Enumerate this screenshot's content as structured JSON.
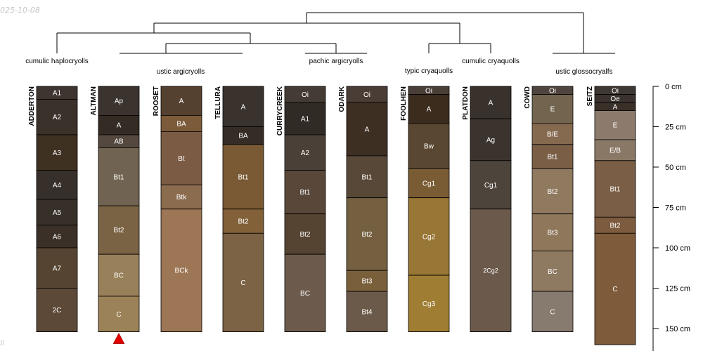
{
  "date_stamp": "025-10-08",
  "footer_mark": "ll",
  "taxa": [
    "cumulic haplocryolls",
    "ustic argicryolls",
    "pachic argicryolls",
    "typic cryaquolls",
    "cumulic cryaquolls",
    "ustic glossocryalfs"
  ],
  "depth_axis": {
    "unit": "cm",
    "ticks": [
      "0 cm",
      "25 cm",
      "50 cm",
      "75 cm",
      "100 cm",
      "125 cm",
      "150 cm"
    ]
  },
  "profiles": [
    {
      "name": "ADDERTON",
      "horizons": [
        {
          "label": "A1",
          "top": 0,
          "bottom": 8,
          "color": "#3e3530"
        },
        {
          "label": "A2",
          "top": 8,
          "bottom": 30,
          "color": "#3b312b"
        },
        {
          "label": "A3",
          "top": 30,
          "bottom": 52,
          "color": "#3f3122"
        },
        {
          "label": "A4",
          "top": 52,
          "bottom": 70,
          "color": "#372f29"
        },
        {
          "label": "A5",
          "top": 70,
          "bottom": 86,
          "color": "#373029"
        },
        {
          "label": "A6",
          "top": 86,
          "bottom": 100,
          "color": "#3a3028"
        },
        {
          "label": "A7",
          "top": 100,
          "bottom": 125,
          "color": "#544431"
        },
        {
          "label": "2C",
          "top": 125,
          "bottom": 152,
          "color": "#5c4938"
        }
      ]
    },
    {
      "name": "ALTMAN",
      "marker": true,
      "horizons": [
        {
          "label": "Ap",
          "top": 0,
          "bottom": 18,
          "color": "#3b332e"
        },
        {
          "label": "A",
          "top": 18,
          "bottom": 30,
          "color": "#332b24"
        },
        {
          "label": "AB",
          "top": 30,
          "bottom": 38,
          "color": "#54483f"
        },
        {
          "label": "Bt1",
          "top": 38,
          "bottom": 74,
          "color": "#716351"
        },
        {
          "label": "Bt2",
          "top": 74,
          "bottom": 104,
          "color": "#7a6244"
        },
        {
          "label": "BC",
          "top": 104,
          "bottom": 130,
          "color": "#98805a"
        },
        {
          "label": "C",
          "top": 130,
          "bottom": 152,
          "color": "#9c8258"
        }
      ]
    },
    {
      "name": "ROOSET",
      "horizons": [
        {
          "label": "A",
          "top": 0,
          "bottom": 18,
          "color": "#55412f"
        },
        {
          "label": "BA",
          "top": 18,
          "bottom": 28,
          "color": "#7b5b3a"
        },
        {
          "label": "Bt",
          "top": 28,
          "bottom": 61,
          "color": "#7b5b43"
        },
        {
          "label": "Btk",
          "top": 61,
          "bottom": 76,
          "color": "#8b6c4f"
        },
        {
          "label": "BCk",
          "top": 76,
          "bottom": 152,
          "color": "#9c7655"
        }
      ]
    },
    {
      "name": "TELLURA",
      "horizons": [
        {
          "label": "A",
          "top": 0,
          "bottom": 25,
          "color": "#3a332d"
        },
        {
          "label": "BA",
          "top": 25,
          "bottom": 36,
          "color": "#352c26"
        },
        {
          "label": "Bt1",
          "top": 36,
          "bottom": 76,
          "color": "#7a5a35"
        },
        {
          "label": "Bt2",
          "top": 76,
          "bottom": 91,
          "color": "#826038"
        },
        {
          "label": "C",
          "top": 91,
          "bottom": 152,
          "color": "#7c6346"
        }
      ]
    },
    {
      "name": "CURRYCREEK",
      "horizons": [
        {
          "label": "Oi",
          "top": 0,
          "bottom": 10,
          "color": "#443b34"
        },
        {
          "label": "A1",
          "top": 10,
          "bottom": 30,
          "color": "#312b26"
        },
        {
          "label": "A2",
          "top": 30,
          "bottom": 52,
          "color": "#4b4037"
        },
        {
          "label": "Bt1",
          "top": 52,
          "bottom": 79,
          "color": "#59483a"
        },
        {
          "label": "Bt2",
          "top": 79,
          "bottom": 104,
          "color": "#564432"
        },
        {
          "label": "BC",
          "top": 104,
          "bottom": 152,
          "color": "#6c5b4c"
        }
      ]
    },
    {
      "name": "ODARK",
      "horizons": [
        {
          "label": "Oi",
          "top": 0,
          "bottom": 10,
          "color": "#4a3d36"
        },
        {
          "label": "A",
          "top": 10,
          "bottom": 43,
          "color": "#3d2f22"
        },
        {
          "label": "Bt1",
          "top": 43,
          "bottom": 69,
          "color": "#584837"
        },
        {
          "label": "Bt2",
          "top": 69,
          "bottom": 114,
          "color": "#745f40"
        },
        {
          "label": "Bt3",
          "top": 114,
          "bottom": 127,
          "color": "#79603b"
        },
        {
          "label": "Bt4",
          "top": 127,
          "bottom": 152,
          "color": "#6b5a49"
        }
      ]
    },
    {
      "name": "FOOLHEN",
      "horizons": [
        {
          "label": "Oi",
          "top": 0,
          "bottom": 5,
          "color": "#4a3f38"
        },
        {
          "label": "A",
          "top": 5,
          "bottom": 23,
          "color": "#3c2c1e"
        },
        {
          "label": "Bw",
          "top": 23,
          "bottom": 51,
          "color": "#5a4732"
        },
        {
          "label": "Cg1",
          "top": 51,
          "bottom": 69,
          "color": "#7a5c34"
        },
        {
          "label": "Cg2",
          "top": 69,
          "bottom": 117,
          "color": "#987635"
        },
        {
          "label": "Cg3",
          "top": 117,
          "bottom": 152,
          "color": "#9f7e34"
        }
      ]
    },
    {
      "name": "PLATDON",
      "horizons": [
        {
          "label": "A",
          "top": 0,
          "bottom": 20,
          "color": "#38312c"
        },
        {
          "label": "Ag",
          "top": 20,
          "bottom": 46,
          "color": "#3b332e"
        },
        {
          "label": "Cg1",
          "top": 46,
          "bottom": 76,
          "color": "#4d443b"
        },
        {
          "label": "2Cg2",
          "top": 76,
          "bottom": 152,
          "color": "#6b5a4b"
        }
      ]
    },
    {
      "name": "COWD",
      "horizons": [
        {
          "label": "Oi",
          "top": 0,
          "bottom": 5,
          "color": "#50453e"
        },
        {
          "label": "E",
          "top": 5,
          "bottom": 23,
          "color": "#73644f"
        },
        {
          "label": "B/E",
          "top": 23,
          "bottom": 36,
          "color": "#866a50"
        },
        {
          "label": "Bt1",
          "top": 36,
          "bottom": 51,
          "color": "#7a5e46"
        },
        {
          "label": "Bt2",
          "top": 51,
          "bottom": 79,
          "color": "#8f7a60"
        },
        {
          "label": "Bt3",
          "top": 79,
          "bottom": 102,
          "color": "#8f775c"
        },
        {
          "label": "BC",
          "top": 102,
          "bottom": 127,
          "color": "#8e7961"
        },
        {
          "label": "C",
          "top": 127,
          "bottom": 152,
          "color": "#877a6e"
        }
      ]
    },
    {
      "name": "SEITZ",
      "horizons": [
        {
          "label": "Oi",
          "top": 0,
          "bottom": 5,
          "color": "#3f3731"
        },
        {
          "label": "Oe",
          "top": 5,
          "bottom": 10,
          "color": "#3a322d"
        },
        {
          "label": "A",
          "top": 10,
          "bottom": 15,
          "color": "#393029"
        },
        {
          "label": "E",
          "top": 15,
          "bottom": 33,
          "color": "#8c7b6c"
        },
        {
          "label": "E/B",
          "top": 33,
          "bottom": 46,
          "color": "#8a7866"
        },
        {
          "label": "Bt1",
          "top": 46,
          "bottom": 81,
          "color": "#7b5e46"
        },
        {
          "label": "Bt2",
          "top": 81,
          "bottom": 91,
          "color": "#7d5b3f"
        },
        {
          "label": "C",
          "top": 91,
          "bottom": 160,
          "color": "#7e5b3a"
        }
      ]
    }
  ]
}
